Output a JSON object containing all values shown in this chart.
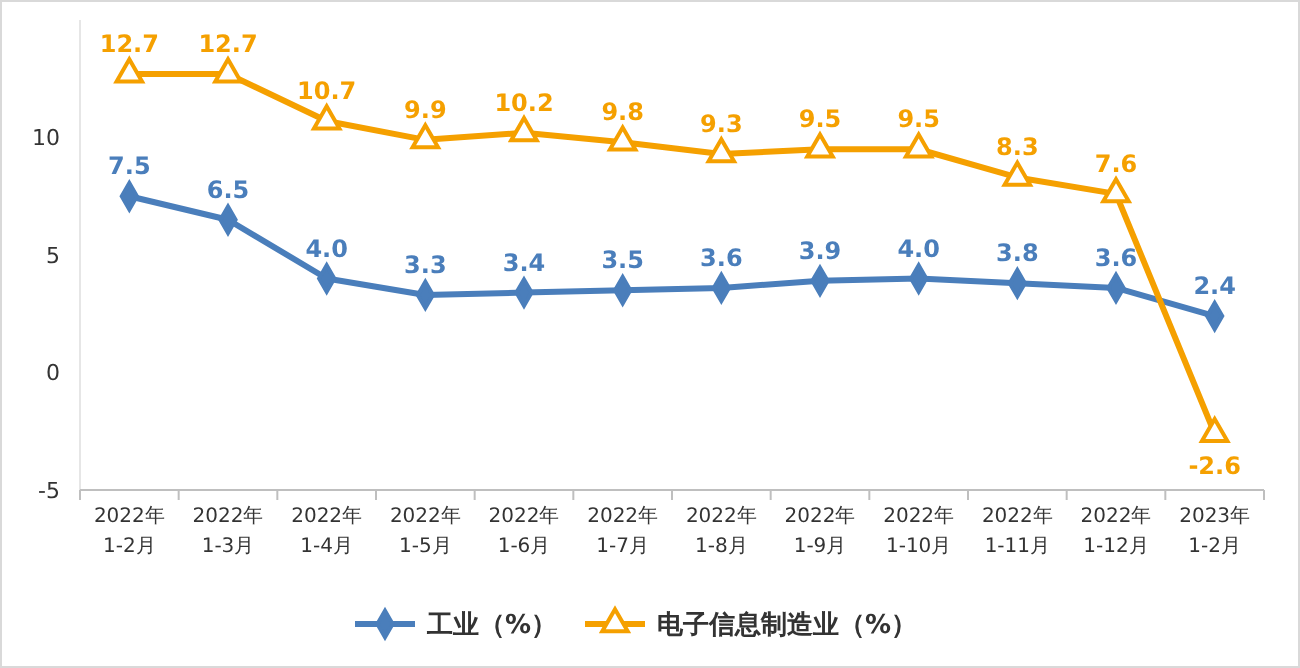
{
  "chart_data": {
    "type": "line",
    "categories": [
      "2022年\n1-2月",
      "2022年\n1-3月",
      "2022年\n1-4月",
      "2022年\n1-5月",
      "2022年\n1-6月",
      "2022年\n1-7月",
      "2022年\n1-8月",
      "2022年\n1-9月",
      "2022年\n1-10月",
      "2022年\n1-11月",
      "2022年\n1-12月",
      "2023年\n1-2月"
    ],
    "series": [
      {
        "name": "工业（%）",
        "color": "#4a7ebb",
        "marker": "diamond",
        "values": [
          7.5,
          6.5,
          4.0,
          3.3,
          3.4,
          3.5,
          3.6,
          3.9,
          4.0,
          3.8,
          3.6,
          2.4
        ],
        "value_labels": [
          "7.5",
          "6.5",
          "4.0",
          "3.3",
          "3.4",
          "3.5",
          "3.6",
          "3.9",
          "4.0",
          "3.8",
          "3.6",
          "2.4"
        ]
      },
      {
        "name": "电子信息制造业（%）",
        "color": "#f5a000",
        "marker": "triangle",
        "values": [
          12.7,
          12.7,
          10.7,
          9.9,
          10.2,
          9.8,
          9.3,
          9.5,
          9.5,
          8.3,
          7.6,
          -2.6
        ],
        "value_labels": [
          "12.7",
          "12.7",
          "10.7",
          "9.9",
          "10.2",
          "9.8",
          "9.3",
          "9.5",
          "9.5",
          "8.3",
          "7.6",
          "-2.6"
        ]
      }
    ],
    "ylim": [
      -5,
      15
    ],
    "yticks": [
      -5,
      0,
      5,
      10
    ],
    "grid": false,
    "legend": "bottom"
  }
}
